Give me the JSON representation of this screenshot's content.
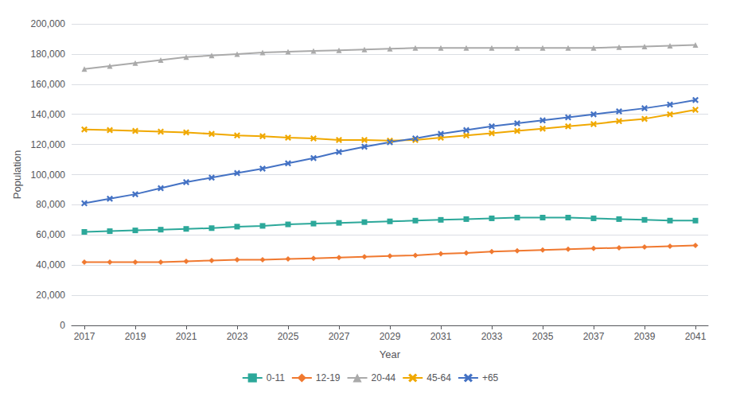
{
  "chart_data": {
    "type": "line",
    "xlabel": "Year",
    "ylabel": "Population",
    "x": [
      2017,
      2018,
      2019,
      2020,
      2021,
      2022,
      2023,
      2024,
      2025,
      2026,
      2027,
      2028,
      2029,
      2030,
      2031,
      2032,
      2033,
      2034,
      2035,
      2036,
      2037,
      2038,
      2039,
      2040,
      2041
    ],
    "series": [
      {
        "name": "0-11",
        "color": "#2CA89A",
        "marker": "square",
        "line_style": "solid",
        "values": [
          62000,
          62500,
          63000,
          63500,
          64000,
          64500,
          65500,
          66000,
          67000,
          67500,
          68000,
          68500,
          69000,
          69500,
          70000,
          70500,
          71000,
          71500,
          71500,
          71500,
          71000,
          70500,
          70000,
          69500,
          69500
        ]
      },
      {
        "name": "12-19",
        "color": "#F07930",
        "marker": "diamond",
        "line_style": "solid",
        "values": [
          42000,
          42000,
          42000,
          42000,
          42500,
          43000,
          43500,
          43500,
          44000,
          44500,
          45000,
          45500,
          46000,
          46500,
          47500,
          48000,
          49000,
          49500,
          50000,
          50500,
          51000,
          51500,
          52000,
          52500,
          53000
        ]
      },
      {
        "name": "20-44",
        "color": "#AAAAAA",
        "marker": "triangle",
        "line_style": "solid",
        "values": [
          170000,
          172000,
          174000,
          176000,
          178000,
          179000,
          180000,
          181000,
          181500,
          182000,
          182500,
          183000,
          183500,
          184000,
          184000,
          184000,
          184000,
          184000,
          184000,
          184000,
          184000,
          184500,
          185000,
          185500,
          186000
        ]
      },
      {
        "name": "45-64",
        "color": "#F0A800",
        "marker": "x",
        "line_style": "solid",
        "values": [
          130000,
          129500,
          129000,
          128500,
          128000,
          127000,
          126000,
          125500,
          124500,
          124000,
          123000,
          123000,
          122500,
          123000,
          124500,
          126000,
          127500,
          129000,
          130500,
          132000,
          133500,
          135500,
          137000,
          140000,
          143000
        ]
      },
      {
        "name": "+65",
        "color": "#4472C4",
        "marker": "x",
        "line_style": "solid",
        "values": [
          81000,
          84000,
          87000,
          91000,
          95000,
          98000,
          101000,
          104000,
          107500,
          111000,
          115000,
          118500,
          121500,
          124000,
          127000,
          129500,
          132000,
          134000,
          136000,
          138000,
          140000,
          142000,
          144000,
          146500,
          149500
        ]
      }
    ],
    "xlim": [
      2016.5,
      2041.5
    ],
    "xticks": [
      2017,
      2019,
      2021,
      2023,
      2025,
      2027,
      2029,
      2031,
      2033,
      2035,
      2037,
      2039,
      2041
    ],
    "ylim": [
      0,
      200000
    ],
    "yticks": [
      0,
      {
        "value": 20000,
        "label": "20,000"
      },
      {
        "value": 40000,
        "label": "40,000"
      },
      {
        "value": 60000,
        "label": "60,000"
      },
      {
        "value": 80000,
        "label": "80,000"
      },
      {
        "value": 100000,
        "label": "100,000"
      },
      {
        "value": 120000,
        "label": "120,000"
      },
      {
        "value": 140000,
        "label": "140,000"
      },
      {
        "value": 160000,
        "label": "160,000"
      },
      {
        "value": 180000,
        "label": "180,000"
      },
      {
        "value": 200000,
        "label": "200,000"
      }
    ],
    "grid": true,
    "legend": "bottom"
  }
}
